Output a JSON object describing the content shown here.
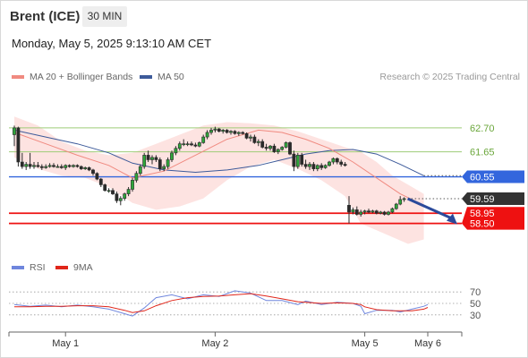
{
  "header": {
    "instrument": "Brent (ICE)",
    "timeframe": "30 MIN",
    "datetime": "Monday, May 5, 2025 9:13:10 AM CET"
  },
  "legend": {
    "ma20_label": "MA 20 + Bollinger Bands",
    "ma50_label": "MA 50",
    "credit": "Research © 2025 Trading Central",
    "rsi_label": "RSI",
    "ma9_label": "9MA"
  },
  "colors": {
    "ma20": "#f08a80",
    "ma50": "#3d5a9a",
    "bollinger_band": "#fde3e1",
    "pivot": "#3366dd",
    "resistance": "#9ecc77",
    "support": "#ee1111",
    "current_price": "#333333",
    "candle": "#2a2a2a",
    "candle_up": "#2fa53b",
    "rsi": "#6f86dd",
    "rsi_ma": "#e0261a",
    "forecast_arrow": "#2b4a9b"
  },
  "chart_data": [
    {
      "type": "candlestick",
      "name": "price",
      "ylim": [
        57.7,
        63.6
      ],
      "levels": [
        {
          "value": 62.7,
          "label": "62.70",
          "kind": "resistance"
        },
        {
          "value": 61.65,
          "label": "61.65",
          "kind": "resistance"
        },
        {
          "value": 60.55,
          "label": "60.55",
          "kind": "pivot"
        },
        {
          "value": 59.59,
          "label": "59.59",
          "kind": "current"
        },
        {
          "value": 58.95,
          "label": "58.95",
          "kind": "support"
        },
        {
          "value": 58.5,
          "label": "58.50",
          "kind": "support"
        }
      ],
      "x_ticks": [
        {
          "index": 13,
          "label": "May 1"
        },
        {
          "index": 51,
          "label": "May 2"
        },
        {
          "index": 89,
          "label": "May 5"
        },
        {
          "index": 105,
          "label": "May 6"
        }
      ],
      "candles": [
        [
          62.4,
          62.8,
          61.9,
          62.7
        ],
        [
          62.7,
          62.75,
          61.0,
          61.2
        ],
        [
          61.2,
          61.6,
          60.9,
          61.0
        ],
        [
          61.0,
          61.2,
          60.85,
          61.1
        ],
        [
          61.1,
          61.6,
          60.9,
          61.0
        ],
        [
          61.0,
          61.2,
          60.9,
          61.05
        ],
        [
          61.05,
          61.2,
          60.95,
          61.0
        ],
        [
          61.0,
          61.1,
          60.85,
          60.95
        ],
        [
          60.95,
          61.1,
          60.9,
          61.0
        ],
        [
          61.0,
          61.15,
          60.95,
          61.05
        ],
        [
          61.05,
          61.15,
          60.95,
          61.0
        ],
        [
          61.0,
          61.1,
          60.95,
          61.0
        ],
        [
          61.0,
          61.1,
          60.9,
          60.95
        ],
        [
          60.95,
          61.1,
          60.85,
          61.05
        ],
        [
          61.05,
          61.1,
          60.95,
          61.0
        ],
        [
          61.0,
          61.1,
          60.95,
          61.05
        ],
        [
          61.05,
          61.1,
          60.95,
          61.0
        ],
        [
          61.0,
          61.05,
          60.85,
          60.9
        ],
        [
          60.9,
          61.0,
          60.85,
          60.95
        ],
        [
          60.95,
          61.0,
          60.8,
          60.85
        ],
        [
          60.85,
          60.9,
          60.6,
          60.7
        ],
        [
          60.7,
          60.75,
          60.4,
          60.45
        ],
        [
          60.45,
          60.5,
          60.1,
          60.2
        ],
        [
          60.2,
          60.25,
          59.9,
          59.95
        ],
        [
          59.95,
          60.05,
          59.85,
          59.95
        ],
        [
          59.95,
          60.05,
          59.75,
          59.8
        ],
        [
          59.8,
          59.9,
          59.4,
          59.5
        ],
        [
          59.5,
          59.7,
          59.3,
          59.6
        ],
        [
          59.6,
          59.85,
          59.5,
          59.8
        ],
        [
          59.8,
          60.1,
          59.7,
          60.0
        ],
        [
          60.0,
          60.5,
          59.9,
          60.4
        ],
        [
          60.4,
          60.8,
          60.3,
          60.7
        ],
        [
          60.7,
          61.1,
          60.6,
          61.0
        ],
        [
          61.0,
          61.6,
          60.9,
          61.5
        ],
        [
          61.5,
          61.7,
          61.2,
          61.3
        ],
        [
          61.3,
          61.5,
          61.1,
          61.4
        ],
        [
          61.4,
          61.5,
          61.2,
          61.3
        ],
        [
          61.3,
          61.4,
          60.8,
          60.9
        ],
        [
          60.9,
          61.1,
          60.8,
          61.0
        ],
        [
          61.0,
          61.4,
          60.9,
          61.3
        ],
        [
          61.3,
          61.7,
          61.2,
          61.6
        ],
        [
          61.6,
          61.9,
          61.5,
          61.8
        ],
        [
          61.8,
          62.1,
          61.7,
          62.0
        ],
        [
          62.0,
          62.2,
          61.9,
          62.0
        ],
        [
          62.0,
          62.1,
          61.9,
          62.0
        ],
        [
          62.0,
          62.1,
          61.9,
          61.95
        ],
        [
          61.95,
          62.05,
          61.85,
          61.9
        ],
        [
          61.9,
          62.1,
          61.85,
          62.05
        ],
        [
          62.05,
          62.4,
          62.0,
          62.3
        ],
        [
          62.3,
          62.6,
          62.2,
          62.5
        ],
        [
          62.5,
          62.7,
          62.4,
          62.6
        ],
        [
          62.6,
          62.75,
          62.5,
          62.65
        ],
        [
          62.65,
          62.7,
          62.5,
          62.55
        ],
        [
          62.55,
          62.65,
          62.45,
          62.6
        ],
        [
          62.6,
          62.65,
          62.45,
          62.5
        ],
        [
          62.5,
          62.6,
          62.4,
          62.55
        ],
        [
          62.55,
          62.6,
          62.4,
          62.45
        ],
        [
          62.45,
          62.55,
          62.35,
          62.5
        ],
        [
          62.5,
          62.55,
          62.4,
          62.45
        ],
        [
          62.45,
          62.5,
          62.2,
          62.25
        ],
        [
          62.25,
          62.4,
          62.1,
          62.3
        ],
        [
          62.3,
          62.4,
          62.0,
          62.05
        ],
        [
          62.05,
          62.2,
          61.9,
          62.1
        ],
        [
          62.1,
          62.2,
          61.8,
          61.85
        ],
        [
          61.85,
          62.0,
          61.7,
          61.8
        ],
        [
          61.8,
          61.95,
          61.7,
          61.9
        ],
        [
          61.9,
          62.0,
          61.6,
          61.65
        ],
        [
          61.65,
          61.8,
          61.55,
          61.75
        ],
        [
          61.75,
          61.9,
          61.7,
          61.85
        ],
        [
          61.85,
          62.1,
          61.8,
          62.05
        ],
        [
          62.05,
          62.1,
          61.5,
          61.55
        ],
        [
          61.55,
          61.7,
          60.8,
          61.0
        ],
        [
          61.0,
          61.6,
          60.9,
          61.5
        ],
        [
          61.5,
          61.6,
          61.0,
          61.1
        ],
        [
          61.1,
          61.3,
          60.9,
          61.0
        ],
        [
          61.0,
          61.2,
          60.85,
          61.1
        ],
        [
          61.1,
          61.2,
          60.8,
          60.9
        ],
        [
          60.9,
          61.1,
          60.8,
          61.05
        ],
        [
          61.05,
          61.15,
          60.85,
          60.95
        ],
        [
          60.95,
          61.1,
          60.9,
          61.05
        ],
        [
          61.05,
          61.25,
          61.0,
          61.2
        ],
        [
          61.2,
          61.4,
          61.1,
          61.35
        ],
        [
          61.35,
          61.4,
          61.1,
          61.2
        ],
        [
          61.2,
          61.3,
          61.0,
          61.1
        ],
        [
          61.1,
          61.2,
          61.0,
          61.05
        ],
        [
          59.3,
          59.7,
          58.5,
          59.0
        ],
        [
          59.0,
          59.2,
          58.9,
          59.1
        ],
        [
          59.1,
          59.25,
          58.85,
          58.9
        ],
        [
          58.9,
          59.1,
          58.8,
          59.0
        ],
        [
          59.0,
          59.1,
          58.9,
          59.05
        ],
        [
          59.05,
          59.15,
          58.95,
          59.0
        ],
        [
          59.0,
          59.1,
          58.95,
          59.05
        ],
        [
          59.05,
          59.1,
          58.9,
          58.95
        ],
        [
          58.95,
          59.05,
          58.9,
          59.0
        ],
        [
          59.0,
          59.05,
          58.85,
          58.9
        ],
        [
          58.9,
          59.05,
          58.85,
          59.0
        ],
        [
          59.0,
          59.2,
          58.95,
          59.15
        ],
        [
          59.15,
          59.4,
          59.1,
          59.35
        ],
        [
          59.35,
          59.7,
          59.3,
          59.55
        ],
        [
          59.55,
          59.65,
          59.45,
          59.59
        ]
      ],
      "ma20": [
        [
          0,
          62.5
        ],
        [
          8,
          62.0
        ],
        [
          16,
          61.5
        ],
        [
          24,
          61.05
        ],
        [
          30,
          60.5
        ],
        [
          38,
          60.8
        ],
        [
          46,
          61.5
        ],
        [
          54,
          62.2
        ],
        [
          62,
          62.6
        ],
        [
          68,
          62.5
        ],
        [
          74,
          62.2
        ],
        [
          80,
          61.8
        ],
        [
          86,
          61.2
        ],
        [
          92,
          60.5
        ],
        [
          98,
          59.8
        ],
        [
          104,
          59.3
        ]
      ],
      "ma50": [
        [
          0,
          62.6
        ],
        [
          8,
          62.3
        ],
        [
          16,
          62.0
        ],
        [
          24,
          61.6
        ],
        [
          30,
          61.15
        ],
        [
          38,
          60.85
        ],
        [
          46,
          60.75
        ],
        [
          54,
          60.85
        ],
        [
          62,
          61.05
        ],
        [
          68,
          61.3
        ],
        [
          74,
          61.55
        ],
        [
          80,
          61.7
        ],
        [
          86,
          61.75
        ],
        [
          92,
          61.55
        ],
        [
          98,
          61.1
        ],
        [
          104,
          60.6
        ]
      ],
      "bb_upper": [
        [
          0,
          63.2
        ],
        [
          6,
          62.8
        ],
        [
          12,
          62.1
        ],
        [
          18,
          61.7
        ],
        [
          24,
          61.5
        ],
        [
          30,
          61.6
        ],
        [
          36,
          62.0
        ],
        [
          42,
          62.4
        ],
        [
          48,
          62.8
        ],
        [
          54,
          62.95
        ],
        [
          60,
          62.9
        ],
        [
          66,
          62.8
        ],
        [
          72,
          62.55
        ],
        [
          78,
          62.2
        ],
        [
          84,
          61.85
        ],
        [
          88,
          61.65
        ],
        [
          92,
          61.2
        ],
        [
          96,
          60.6
        ],
        [
          100,
          60.2
        ],
        [
          104,
          59.8
        ]
      ],
      "bb_lower": [
        [
          0,
          61.4
        ],
        [
          6,
          60.9
        ],
        [
          12,
          60.6
        ],
        [
          18,
          60.5
        ],
        [
          24,
          60.1
        ],
        [
          30,
          59.4
        ],
        [
          36,
          59.1
        ],
        [
          42,
          59.25
        ],
        [
          48,
          59.6
        ],
        [
          54,
          60.4
        ],
        [
          60,
          61.0
        ],
        [
          66,
          61.3
        ],
        [
          72,
          60.9
        ],
        [
          78,
          60.4
        ],
        [
          84,
          59.7
        ],
        [
          88,
          58.5
        ],
        [
          92,
          58.2
        ],
        [
          96,
          57.9
        ],
        [
          100,
          57.6
        ],
        [
          104,
          57.8
        ]
      ]
    },
    {
      "type": "line",
      "name": "rsi",
      "ylim": [
        0,
        100
      ],
      "y_ticks": [
        70,
        50,
        30
      ],
      "series": [
        {
          "name": "RSI",
          "points": [
            [
              0,
              48
            ],
            [
              4,
              45
            ],
            [
              8,
              47
            ],
            [
              12,
              44
            ],
            [
              16,
              47
            ],
            [
              20,
              44
            ],
            [
              24,
              40
            ],
            [
              28,
              32
            ],
            [
              30,
              28
            ],
            [
              33,
              42
            ],
            [
              36,
              60
            ],
            [
              40,
              65
            ],
            [
              44,
              58
            ],
            [
              48,
              65
            ],
            [
              52,
              62
            ],
            [
              56,
              72
            ],
            [
              60,
              68
            ],
            [
              64,
              55
            ],
            [
              68,
              55
            ],
            [
              72,
              48
            ],
            [
              74,
              54
            ],
            [
              78,
              48
            ],
            [
              82,
              52
            ],
            [
              86,
              50
            ],
            [
              88,
              45
            ],
            [
              89,
              32
            ],
            [
              92,
              38
            ],
            [
              96,
              38
            ],
            [
              98,
              35
            ],
            [
              101,
              40
            ],
            [
              104,
              45
            ],
            [
              105,
              48
            ]
          ]
        },
        {
          "name": "9MA",
          "points": [
            [
              0,
              44
            ],
            [
              4,
              44
            ],
            [
              8,
              45
            ],
            [
              12,
              45
            ],
            [
              16,
              46
            ],
            [
              20,
              46
            ],
            [
              24,
              44
            ],
            [
              28,
              38
            ],
            [
              30,
              34
            ],
            [
              33,
              37
            ],
            [
              36,
              46
            ],
            [
              40,
              55
            ],
            [
              44,
              60
            ],
            [
              48,
              62
            ],
            [
              52,
              63
            ],
            [
              56,
              65
            ],
            [
              60,
              67
            ],
            [
              64,
              63
            ],
            [
              68,
              58
            ],
            [
              72,
              53
            ],
            [
              74,
              52
            ],
            [
              78,
              50
            ],
            [
              82,
              51
            ],
            [
              86,
              50
            ],
            [
              88,
              48
            ],
            [
              89,
              44
            ],
            [
              92,
              39
            ],
            [
              96,
              37
            ],
            [
              98,
              37
            ],
            [
              101,
              37
            ],
            [
              104,
              40
            ],
            [
              105,
              43
            ]
          ]
        }
      ]
    }
  ]
}
